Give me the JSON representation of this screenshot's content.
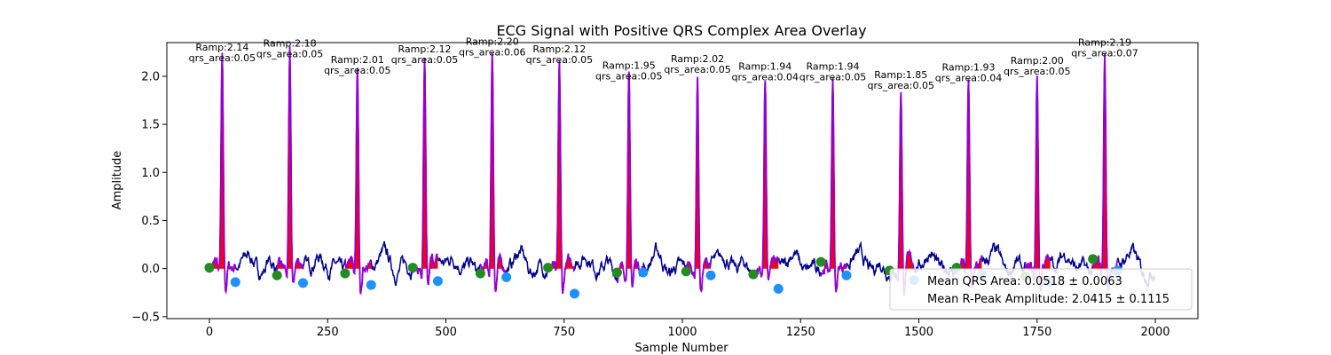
{
  "chart_data": {
    "type": "line",
    "title": "ECG Signal with Positive QRS Complex Area Overlay",
    "xlabel": "Sample Number",
    "ylabel": "Amplitude",
    "xlim": [
      -90,
      2090
    ],
    "ylim": [
      -0.52,
      2.35
    ],
    "xticks": [
      0,
      250,
      500,
      750,
      1000,
      1250,
      1500,
      1750,
      2000
    ],
    "yticks": [
      -0.5,
      0.0,
      0.5,
      1.0,
      1.5,
      2.0
    ],
    "ytick_labels": [
      "−0.5",
      "0.0",
      "0.5",
      "1.0",
      "1.5",
      "2.0"
    ],
    "grid": false,
    "signal_length": 2000,
    "beats": [
      {
        "r_sample": 27,
        "r_amp": 2.14,
        "qrs_area": 0.05,
        "label_ramp": "Ramp:2.14",
        "label_area": "qrs_area:0.05",
        "onset_sample": 0,
        "onset_amp": 0.01,
        "offset_sample": 55,
        "offset_amp": -0.14
      },
      {
        "r_sample": 170,
        "r_amp": 2.18,
        "qrs_area": 0.05,
        "label_ramp": "Ramp:2.18",
        "label_area": "qrs_area:0.05",
        "onset_sample": 143,
        "onset_amp": -0.07,
        "offset_sample": 198,
        "offset_amp": -0.15
      },
      {
        "r_sample": 313,
        "r_amp": 2.01,
        "qrs_area": 0.05,
        "label_ramp": "Ramp:2.01",
        "label_area": "qrs_area:0.05",
        "onset_sample": 287,
        "onset_amp": -0.05,
        "offset_sample": 342,
        "offset_amp": -0.17
      },
      {
        "r_sample": 455,
        "r_amp": 2.12,
        "qrs_area": 0.05,
        "label_ramp": "Ramp:2.12",
        "label_area": "qrs_area:0.05",
        "onset_sample": 430,
        "onset_amp": 0.01,
        "offset_sample": 483,
        "offset_amp": -0.13
      },
      {
        "r_sample": 598,
        "r_amp": 2.2,
        "qrs_area": 0.06,
        "label_ramp": "Ramp:2.20",
        "label_area": "qrs_area:0.06",
        "onset_sample": 573,
        "onset_amp": -0.05,
        "offset_sample": 628,
        "offset_amp": -0.09
      },
      {
        "r_sample": 740,
        "r_amp": 2.12,
        "qrs_area": 0.05,
        "label_ramp": "Ramp:2.12",
        "label_area": "qrs_area:0.05",
        "onset_sample": 716,
        "onset_amp": 0.01,
        "offset_sample": 772,
        "offset_amp": -0.26
      },
      {
        "r_sample": 887,
        "r_amp": 1.95,
        "qrs_area": 0.05,
        "label_ramp": "Ramp:1.95",
        "label_area": "qrs_area:0.05",
        "onset_sample": 862,
        "onset_amp": -0.04,
        "offset_sample": 917,
        "offset_amp": -0.04
      },
      {
        "r_sample": 1032,
        "r_amp": 2.02,
        "qrs_area": 0.05,
        "label_ramp": "Ramp:2.02",
        "label_area": "qrs_area:0.05",
        "onset_sample": 1008,
        "onset_amp": -0.03,
        "offset_sample": 1060,
        "offset_amp": -0.07
      },
      {
        "r_sample": 1175,
        "r_amp": 1.94,
        "qrs_area": 0.04,
        "label_ramp": "Ramp:1.94",
        "label_area": "qrs_area:0.04",
        "onset_sample": 1150,
        "onset_amp": -0.06,
        "offset_sample": 1203,
        "offset_amp": -0.21
      },
      {
        "r_sample": 1318,
        "r_amp": 1.94,
        "qrs_area": 0.05,
        "label_ramp": "Ramp:1.94",
        "label_area": "qrs_area:0.05",
        "onset_sample": 1293,
        "onset_amp": 0.07,
        "offset_sample": 1347,
        "offset_amp": -0.07
      },
      {
        "r_sample": 1462,
        "r_amp": 1.85,
        "qrs_area": 0.05,
        "label_ramp": "Ramp:1.85",
        "label_area": "qrs_area:0.05",
        "onset_sample": 1438,
        "onset_amp": -0.02,
        "offset_sample": 1490,
        "offset_amp": -0.12
      },
      {
        "r_sample": 1605,
        "r_amp": 1.93,
        "qrs_area": 0.04,
        "label_ramp": "Ramp:1.93",
        "label_area": "qrs_area:0.04",
        "onset_sample": 1580,
        "onset_amp": 0.01,
        "offset_sample": 1633,
        "offset_amp": -0.06
      },
      {
        "r_sample": 1750,
        "r_amp": 2.0,
        "qrs_area": 0.05,
        "label_ramp": "Ramp:2.00",
        "label_area": "qrs_area:0.05",
        "onset_sample": 1725,
        "onset_amp": -0.08,
        "offset_sample": 1778,
        "offset_amp": -0.14
      },
      {
        "r_sample": 1893,
        "r_amp": 2.19,
        "qrs_area": 0.07,
        "label_ramp": "Ramp:2.19",
        "label_area": "qrs_area:0.07",
        "onset_sample": 1868,
        "onset_amp": 0.1,
        "offset_sample": 1920,
        "offset_amp": -0.02
      }
    ],
    "legend": {
      "placement": "lower right",
      "entries": [
        "Mean QRS Area: 0.0518 ± 0.0063",
        "Mean R-Peak Amplitude: 2.0415 ± 0.1115"
      ]
    },
    "colors": {
      "signal": "#00008b",
      "qrs_segment": "#9400d3",
      "qrs_area_fill": "#ff0000",
      "onset_marker": "#228b22",
      "offset_marker": "#1e90ff"
    }
  }
}
